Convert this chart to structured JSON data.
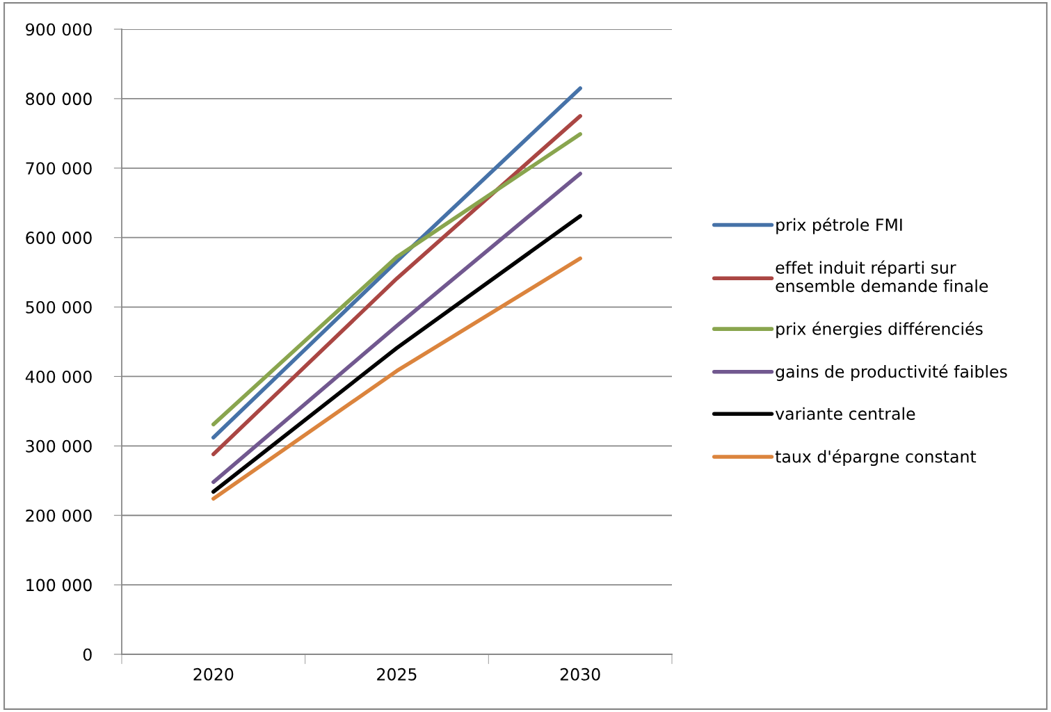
{
  "chart_data": {
    "type": "line",
    "categories": [
      "2020",
      "2025",
      "2030"
    ],
    "series": [
      {
        "name": "prix pétrole FMI",
        "color": "#4672a8",
        "values": [
          312000,
          566000,
          815000
        ]
      },
      {
        "name": "effet induit réparti sur ensemble demande finale",
        "color": "#aa4643",
        "values": [
          288000,
          541000,
          775000
        ]
      },
      {
        "name": "prix énergies différenciés",
        "color": "#89a54e",
        "values": [
          331000,
          572000,
          749000
        ]
      },
      {
        "name": "gains de productivité faibles",
        "color": "#71588f",
        "values": [
          248000,
          473000,
          692000
        ]
      },
      {
        "name": "variante centrale",
        "color": "#000000",
        "values": [
          234000,
          441000,
          631000
        ]
      },
      {
        "name": "taux d'épargne constant",
        "color": "#db843d",
        "values": [
          224000,
          408000,
          570000
        ]
      }
    ],
    "ylim": [
      0,
      900000
    ],
    "yticks": [
      {
        "value": 0,
        "label": "0"
      },
      {
        "value": 100000,
        "label": "100 000"
      },
      {
        "value": 200000,
        "label": "200 000"
      },
      {
        "value": 300000,
        "label": "300 000"
      },
      {
        "value": 400000,
        "label": "400 000"
      },
      {
        "value": 500000,
        "label": "500 000"
      },
      {
        "value": 600000,
        "label": "600 000"
      },
      {
        "value": 700000,
        "label": "700 000"
      },
      {
        "value": 800000,
        "label": "800 000"
      },
      {
        "value": 900000,
        "label": "900 000"
      }
    ],
    "grid": "y",
    "legend": "right",
    "marker": "none",
    "line_style": "solid"
  }
}
